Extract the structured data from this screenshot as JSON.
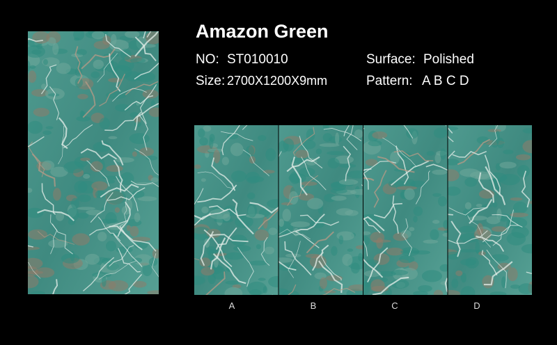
{
  "product": {
    "title": "Amazon Green",
    "specs": [
      {
        "label": "NO:",
        "value": "ST010010"
      },
      {
        "label": "Size:",
        "value": "2700X1200X9mm"
      },
      {
        "label": "Surface:",
        "value": "Polished"
      },
      {
        "label": "Pattern:",
        "value": "A B C D"
      }
    ],
    "tiles": [
      "A",
      "B",
      "C",
      "D"
    ]
  }
}
